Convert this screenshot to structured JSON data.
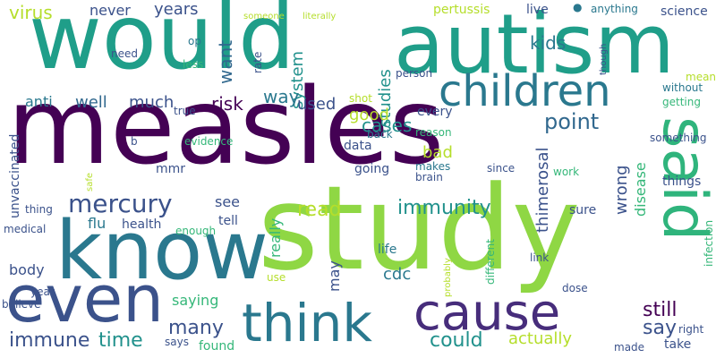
{
  "palette": {
    "dark_purple": "#440154",
    "indigo": "#3b528b",
    "teal_blue": "#31688e",
    "teal": "#21918c",
    "green_teal": "#1f9e89",
    "green": "#35b779",
    "lime": "#6ece58",
    "bright_lime": "#8fd744",
    "yellow": "#b5de2b",
    "dark_teal": "#2a788e"
  },
  "words": [
    {
      "t": "measles",
      "c": "#440154"
    },
    {
      "t": "study",
      "c": "#8fd744"
    },
    {
      "t": "would",
      "c": "#1f9e89"
    },
    {
      "t": "autism",
      "c": "#1f9e89"
    },
    {
      "t": "know",
      "c": "#2a788e"
    },
    {
      "t": "even",
      "c": "#3b528b"
    },
    {
      "t": "said",
      "c": "#2fb47c"
    },
    {
      "t": "think",
      "c": "#2a788e"
    },
    {
      "t": "cause",
      "c": "#472d7b"
    },
    {
      "t": "children",
      "c": "#2a788e"
    },
    {
      "t": "mercury",
      "c": "#3b528b"
    },
    {
      "t": "immunity",
      "c": "#21918c"
    },
    {
      "t": "say",
      "c": "#3b528b"
    },
    {
      "t": "point",
      "c": "#31688e"
    },
    {
      "t": "kids",
      "c": "#2a788e"
    },
    {
      "t": "could",
      "c": "#21918c"
    },
    {
      "t": "read",
      "c": "#b5de2b"
    },
    {
      "t": "still",
      "c": "#440154"
    },
    {
      "t": "immune",
      "c": "#3b528b"
    },
    {
      "t": "time",
      "c": "#21918c"
    },
    {
      "t": "many",
      "c": "#3b528b"
    },
    {
      "t": "actually",
      "c": "#b5de2b"
    },
    {
      "t": "want",
      "c": "#31688e"
    },
    {
      "t": "years",
      "c": "#3b528b"
    },
    {
      "t": "virus",
      "c": "#b5de2b"
    },
    {
      "t": "never",
      "c": "#3b528b"
    },
    {
      "t": "cases",
      "c": "#21918c"
    },
    {
      "t": "system",
      "c": "#21918c"
    },
    {
      "t": "studies",
      "c": "#21918c"
    },
    {
      "t": "risk",
      "c": "#440154"
    },
    {
      "t": "way",
      "c": "#2a788e"
    },
    {
      "t": "used",
      "c": "#3b528b"
    },
    {
      "t": "anti",
      "c": "#2a788e"
    },
    {
      "t": "well",
      "c": "#31688e"
    },
    {
      "t": "much",
      "c": "#3b528b"
    },
    {
      "t": "good",
      "c": "#b5de2b"
    },
    {
      "t": "bad",
      "c": "#b5de2b"
    },
    {
      "t": "see",
      "c": "#3b528b"
    },
    {
      "t": "flu",
      "c": "#2a788e"
    },
    {
      "t": "health",
      "c": "#3b528b"
    },
    {
      "t": "unvaccinated",
      "c": "#3b528b"
    },
    {
      "t": "wrong",
      "c": "#3b528b"
    },
    {
      "t": "disease",
      "c": "#35b779"
    },
    {
      "t": "thimerosal",
      "c": "#3b528b"
    },
    {
      "t": "really",
      "c": "#35b779"
    },
    {
      "t": "cdc",
      "c": "#2a788e"
    },
    {
      "t": "may",
      "c": "#3b528b"
    },
    {
      "t": "body",
      "c": "#3b528b"
    },
    {
      "t": "saying",
      "c": "#35b779"
    },
    {
      "t": "pertussis",
      "c": "#b5de2b"
    },
    {
      "t": "science",
      "c": "#3b528b"
    },
    {
      "t": "live",
      "c": "#3b528b"
    },
    {
      "t": "anything",
      "c": "#2a788e"
    },
    {
      "t": "mmr",
      "c": "#3b528b"
    },
    {
      "t": "data",
      "c": "#3b528b"
    },
    {
      "t": "going",
      "c": "#3b528b"
    },
    {
      "t": "every",
      "c": "#3b528b"
    },
    {
      "t": "life",
      "c": "#2a788e"
    },
    {
      "t": "tell",
      "c": "#3b528b"
    },
    {
      "t": "sure",
      "c": "#3b528b"
    },
    {
      "t": "things",
      "c": "#3b528b"
    },
    {
      "t": "evidence",
      "c": "#35b779"
    },
    {
      "t": "makes",
      "c": "#2a788e"
    },
    {
      "t": "brain",
      "c": "#3b528b"
    },
    {
      "t": "since",
      "c": "#3b528b"
    },
    {
      "t": "work",
      "c": "#35b779"
    },
    {
      "t": "something",
      "c": "#3b528b"
    },
    {
      "t": "back",
      "c": "#2a788e"
    },
    {
      "t": "reason",
      "c": "#35b779"
    },
    {
      "t": "mean",
      "c": "#b5de2b"
    },
    {
      "t": "without",
      "c": "#2a788e"
    },
    {
      "t": "getting",
      "c": "#35b779"
    },
    {
      "t": "someone",
      "c": "#b5de2b"
    },
    {
      "t": "literally",
      "c": "#b5de2b"
    },
    {
      "t": "need",
      "c": "#3b528b"
    },
    {
      "t": "op",
      "c": "#2a788e"
    },
    {
      "t": "less",
      "c": "#35b779"
    },
    {
      "t": "rate",
      "c": "#3b528b"
    },
    {
      "t": "though",
      "c": "#3b528b"
    },
    {
      "t": "person",
      "c": "#3b528b"
    },
    {
      "t": "shot",
      "c": "#b5de2b"
    },
    {
      "t": "true",
      "c": "#3b528b"
    },
    {
      "t": "b",
      "c": "#3b528b"
    },
    {
      "t": "safe",
      "c": "#b5de2b"
    },
    {
      "t": "thing",
      "c": "#3b528b"
    },
    {
      "t": "medical",
      "c": "#3b528b"
    },
    {
      "t": "enough",
      "c": "#35b779"
    },
    {
      "t": "year",
      "c": "#3b528b"
    },
    {
      "t": "believe",
      "c": "#3b528b"
    },
    {
      "t": "use",
      "c": "#b5de2b"
    },
    {
      "t": "probably",
      "c": "#b5de2b"
    },
    {
      "t": "different",
      "c": "#35b779"
    },
    {
      "t": "link",
      "c": "#3b528b"
    },
    {
      "t": "dose",
      "c": "#3b528b"
    },
    {
      "t": "infection",
      "c": "#35b779"
    },
    {
      "t": "right",
      "c": "#3b528b"
    },
    {
      "t": "take",
      "c": "#3b528b"
    },
    {
      "t": "made",
      "c": "#3b528b"
    },
    {
      "t": "says",
      "c": "#3b528b"
    },
    {
      "t": "found",
      "c": "#35b779"
    }
  ]
}
